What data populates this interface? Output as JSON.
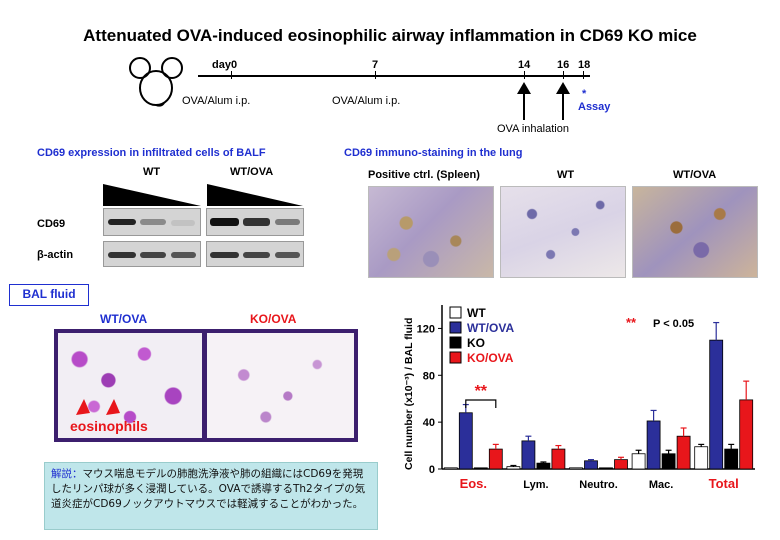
{
  "title": "Attenuated OVA-induced eosinophilic airway inflammation in CD69 KO mice",
  "timeline": {
    "days": [
      "day0",
      "7",
      "14",
      "16",
      "18"
    ],
    "treatments": [
      "OVA/Alum i.p.",
      "OVA/Alum i.p."
    ],
    "inhalation": "OVA inhalation",
    "assay_star": "*",
    "assay": "Assay"
  },
  "rtpcr": {
    "heading": "CD69 expression in infiltrated cells of BALF",
    "groups": [
      "WT",
      "WT/OVA"
    ],
    "rows": [
      "CD69",
      "β-actin"
    ]
  },
  "ihc": {
    "heading": "CD69 immuno-staining in the lung",
    "panels": [
      "Positive ctrl. (Spleen)",
      "WT",
      "WT/OVA"
    ]
  },
  "bal": {
    "label": "BAL fluid",
    "panels": [
      "WT/OVA",
      "KO/OVA"
    ],
    "annotation": "eosinophils"
  },
  "note": {
    "label": "解説：",
    "text": "マウス喘息モデルの肺胞洗浄液や肺の組織にはCD69を発現したリンパ球が多く浸潤している。OVAで誘導するTh2タイプの気道炎症がCD69ノックアウトマウスでは軽減することがわかった。"
  },
  "chart_data": {
    "type": "bar",
    "ylabel": "Cell number (x10⁻³) / BAL fluid",
    "ylim": [
      0,
      140
    ],
    "yticks": [
      "0",
      "40",
      "80",
      "120"
    ],
    "categories": [
      "Eos.",
      "Lym.",
      "Neutro.",
      "Mac.",
      "Total"
    ],
    "series": [
      {
        "name": "WT",
        "color": "#ffffff",
        "values": [
          1,
          2,
          1,
          13,
          19
        ],
        "errors": [
          0,
          1,
          0,
          3,
          2
        ]
      },
      {
        "name": "WT/OVA",
        "color": "#2b2f9a",
        "values": [
          48,
          24,
          7,
          41,
          110
        ],
        "errors": [
          7,
          4,
          1,
          9,
          15
        ]
      },
      {
        "name": "KO",
        "color": "#000000",
        "values": [
          1,
          5,
          1,
          13,
          17
        ],
        "errors": [
          0,
          1,
          0,
          3,
          4
        ]
      },
      {
        "name": "KO/OVA",
        "color": "#e8161b",
        "values": [
          17,
          17,
          8,
          28,
          59
        ],
        "errors": [
          4,
          3,
          2,
          7,
          16
        ]
      }
    ],
    "significance": {
      "marker": "**",
      "label": "P < 0.05"
    },
    "highlight_categories": [
      "Eos.",
      "Total"
    ]
  }
}
